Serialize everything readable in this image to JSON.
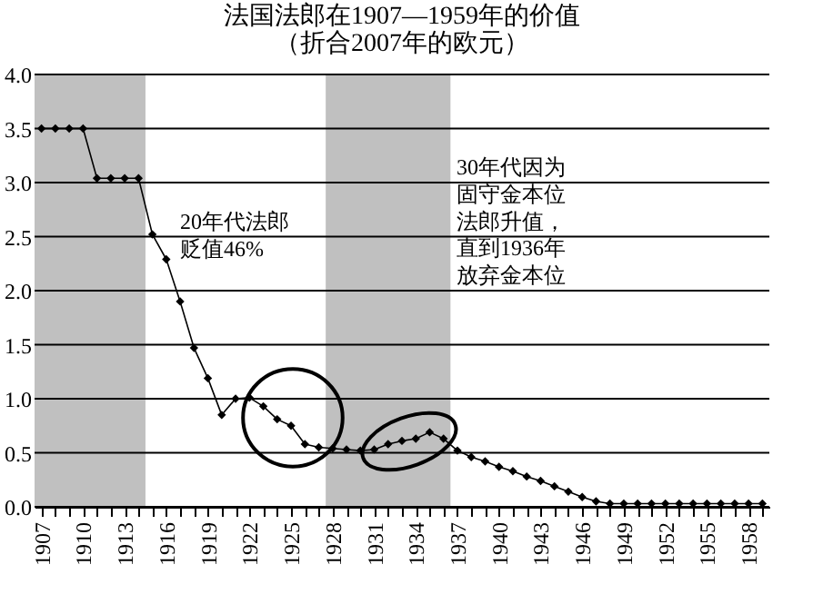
{
  "chart_data": {
    "type": "line",
    "title": "法国法郎在1907—1959年的价值",
    "subtitle": "（折合2007年的欧元）",
    "x": [
      1907,
      1908,
      1909,
      1910,
      1911,
      1912,
      1913,
      1914,
      1915,
      1916,
      1917,
      1918,
      1919,
      1920,
      1921,
      1922,
      1923,
      1924,
      1925,
      1926,
      1927,
      1928,
      1929,
      1930,
      1931,
      1932,
      1933,
      1934,
      1935,
      1936,
      1937,
      1938,
      1939,
      1940,
      1941,
      1942,
      1943,
      1944,
      1945,
      1946,
      1947,
      1948,
      1949,
      1950,
      1951,
      1952,
      1953,
      1954,
      1955,
      1956,
      1957,
      1958,
      1959
    ],
    "series": [
      {
        "color": "#000000",
        "values": [
          3.5,
          3.5,
          3.5,
          3.5,
          3.04,
          3.04,
          3.04,
          3.04,
          2.52,
          2.29,
          1.9,
          1.47,
          1.19,
          0.85,
          1.0,
          1.01,
          0.93,
          0.81,
          0.75,
          0.58,
          0.55,
          0.54,
          0.53,
          0.52,
          0.53,
          0.58,
          0.61,
          0.63,
          0.69,
          0.63,
          0.52,
          0.46,
          0.42,
          0.37,
          0.33,
          0.28,
          0.24,
          0.19,
          0.14,
          0.09,
          0.05,
          0.03,
          0.03,
          0.03,
          0.03,
          0.03,
          0.03,
          0.03,
          0.03,
          0.03,
          0.03,
          0.03,
          0.03
        ]
      }
    ],
    "xlim": [
      1906.5,
      1959.5
    ],
    "xticks": [
      1907,
      {
        "value": 1908,
        "label": null
      },
      {
        "value": 1909,
        "label": null
      },
      1910,
      {
        "value": 1911,
        "label": null
      },
      {
        "value": 1912,
        "label": null
      },
      1913,
      {
        "value": 1914,
        "label": null
      },
      {
        "value": 1915,
        "label": null
      },
      1916,
      {
        "value": 1917,
        "label": null
      },
      {
        "value": 1918,
        "label": null
      },
      1919,
      {
        "value": 1920,
        "label": null
      },
      {
        "value": 1921,
        "label": null
      },
      1922,
      {
        "value": 1923,
        "label": null
      },
      {
        "value": 1924,
        "label": null
      },
      1925,
      {
        "value": 1926,
        "label": null
      },
      {
        "value": 1927,
        "label": null
      },
      1928,
      {
        "value": 1929,
        "label": null
      },
      {
        "value": 1930,
        "label": null
      },
      1931,
      {
        "value": 1932,
        "label": null
      },
      {
        "value": 1933,
        "label": null
      },
      1934,
      {
        "value": 1935,
        "label": null
      },
      {
        "value": 1936,
        "label": null
      },
      1937,
      {
        "value": 1938,
        "label": null
      },
      {
        "value": 1939,
        "label": null
      },
      1940,
      {
        "value": 1941,
        "label": null
      },
      {
        "value": 1942,
        "label": null
      },
      1943,
      {
        "value": 1944,
        "label": null
      },
      {
        "value": 1945,
        "label": null
      },
      1946,
      {
        "value": 1947,
        "label": null
      },
      {
        "value": 1948,
        "label": null
      },
      1949,
      {
        "value": 1950,
        "label": null
      },
      {
        "value": 1951,
        "label": null
      },
      1952,
      {
        "value": 1953,
        "label": null
      },
      {
        "value": 1954,
        "label": null
      },
      1955,
      {
        "value": 1956,
        "label": null
      },
      {
        "value": 1957,
        "label": null
      },
      1958,
      {
        "value": 1959,
        "label": null
      }
    ],
    "ylim": [
      0,
      4
    ],
    "yticks": [
      {
        "value": 0,
        "label": "0.0"
      },
      {
        "value": 0.5,
        "label": "0.5"
      },
      {
        "value": 1,
        "label": "1.0"
      },
      {
        "value": 1.5,
        "label": "1.5"
      },
      {
        "value": 2,
        "label": "2.0"
      },
      {
        "value": 2.5,
        "label": "2.5"
      },
      {
        "value": 3,
        "label": "3.0"
      },
      {
        "value": 3.5,
        "label": "3.5"
      },
      {
        "value": 4,
        "label": "4.0"
      }
    ],
    "grid": "y",
    "marker": "diamond",
    "line_style": "solid",
    "bands": [
      {
        "axis": "x",
        "from": 1906.5,
        "to": 1914.5,
        "color": "#c0c0c0"
      },
      {
        "axis": "x",
        "from": 1927.5,
        "to": 1936.5,
        "color": "#c0c0c0"
      }
    ],
    "annotations": [
      "20年代法郎贬值46%",
      "30年代因为固守金本位法郎升值，直到1936年放弃金本位"
    ]
  }
}
